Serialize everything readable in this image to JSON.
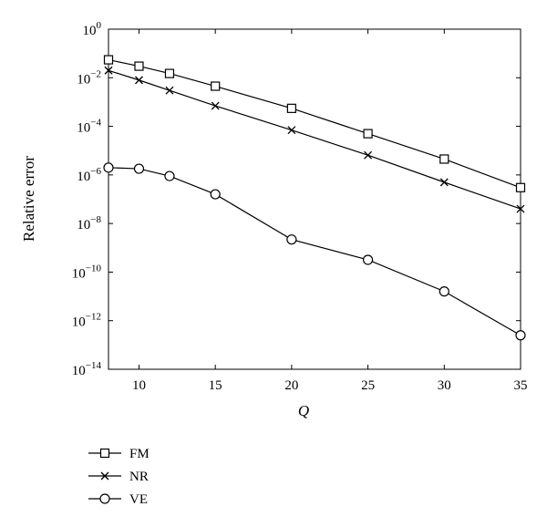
{
  "chart_data": {
    "type": "line",
    "title": "",
    "xlabel": "Q",
    "ylabel": "Relative error",
    "x": [
      8,
      10,
      12,
      15,
      20,
      25,
      30,
      35
    ],
    "xlim": [
      8,
      35
    ],
    "xticks": [
      10,
      15,
      20,
      25,
      30,
      35
    ],
    "yscale": "log",
    "ylim": [
      1e-14,
      1
    ],
    "yticks": [
      {
        "exp": -14,
        "label": "10",
        "sup": "−14"
      },
      {
        "exp": -12,
        "label": "10",
        "sup": "−12"
      },
      {
        "exp": -10,
        "label": "10",
        "sup": "−10"
      },
      {
        "exp": -8,
        "label": "10",
        "sup": "−8"
      },
      {
        "exp": -6,
        "label": "10",
        "sup": "−6"
      },
      {
        "exp": -4,
        "label": "10",
        "sup": "−4"
      },
      {
        "exp": -2,
        "label": "10",
        "sup": "−2"
      },
      {
        "exp": 0,
        "label": "10",
        "sup": "0"
      }
    ],
    "grid": false,
    "legend_position": "below",
    "series": [
      {
        "name": "FM",
        "marker": "square",
        "values": [
          0.055,
          0.03,
          0.015,
          0.0045,
          0.00055,
          5e-05,
          4.5e-06,
          3e-07
        ]
      },
      {
        "name": "NR",
        "marker": "x",
        "values": [
          0.02,
          0.008,
          0.003,
          0.0007,
          7e-05,
          6.5e-06,
          5e-07,
          4e-08
        ]
      },
      {
        "name": "VE",
        "marker": "circle",
        "values": [
          2e-06,
          1.8e-06,
          9e-07,
          1.6e-07,
          2.2e-09,
          3.2e-10,
          1.6e-11,
          2.5e-13
        ]
      }
    ]
  }
}
